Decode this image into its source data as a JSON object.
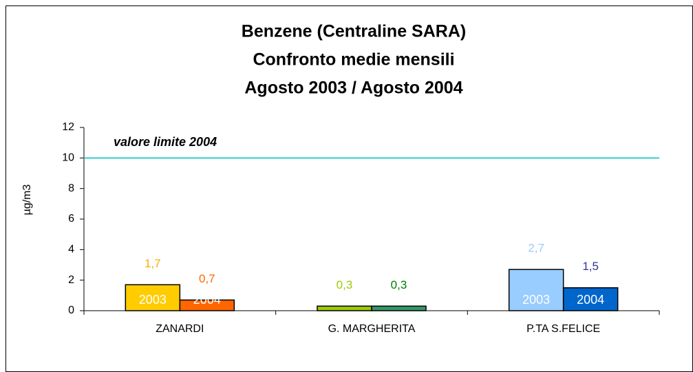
{
  "chart_data": {
    "type": "bar",
    "title": [
      "Benzene (Centraline SARA)",
      "Confronto medie mensili",
      "Agosto 2003 / Agosto 2004"
    ],
    "y_label": "µg/m3",
    "categories": [
      "ZANARDI",
      "G. MARGHERITA",
      "P.TA S.FELICE"
    ],
    "series": [
      {
        "name": "2003",
        "values": [
          1.7,
          0.3,
          2.7
        ],
        "value_labels": [
          "1,7",
          "0,3",
          "2,7"
        ],
        "colors": [
          "#ffcc00",
          "#99cc00",
          "#99ccff"
        ],
        "label_colors": [
          "#ffaa00",
          "#99cc00",
          "#99ccff"
        ]
      },
      {
        "name": "2004",
        "values": [
          0.7,
          0.3,
          1.5
        ],
        "value_labels": [
          "0,7",
          "0,3",
          "1,5"
        ],
        "colors": [
          "#ff6600",
          "#339966",
          "#0066cc"
        ],
        "label_colors": [
          "#ff6600",
          "#008000",
          "#333399"
        ]
      }
    ],
    "ylim": [
      0,
      12
    ],
    "yticks": [
      0,
      2,
      4,
      6,
      8,
      10,
      12
    ],
    "reference_line": {
      "value": 10,
      "label": "valore limite 2004",
      "color": "#33cccc"
    }
  }
}
